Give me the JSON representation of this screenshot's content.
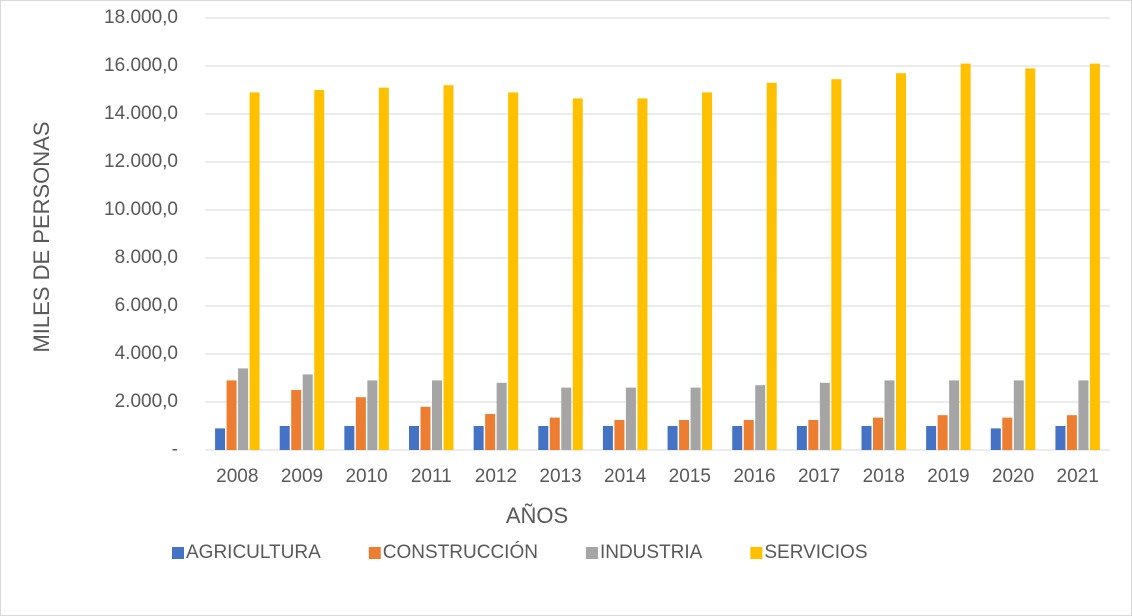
{
  "chart_data": {
    "type": "bar",
    "categories": [
      "2008",
      "2009",
      "2010",
      "2011",
      "2012",
      "2013",
      "2014",
      "2015",
      "2016",
      "2017",
      "2018",
      "2019",
      "2020",
      "2021"
    ],
    "series": [
      {
        "name": "AGRICULTURA",
        "color": "#4472c4",
        "values": [
          900,
          1000,
          1000,
          1000,
          1000,
          1000,
          1000,
          1000,
          1000,
          1000,
          1000,
          1000,
          900,
          1000
        ]
      },
      {
        "name": "CONSTRUCCIÓN",
        "color": "#ed7d31",
        "values": [
          2900,
          2500,
          2200,
          1800,
          1500,
          1350,
          1250,
          1250,
          1250,
          1250,
          1350,
          1450,
          1350,
          1450
        ]
      },
      {
        "name": "INDUSTRIA",
        "color": "#a5a5a5",
        "values": [
          3400,
          3150,
          2900,
          2900,
          2800,
          2600,
          2600,
          2600,
          2700,
          2800,
          2900,
          2900,
          2900,
          2900
        ]
      },
      {
        "name": "SERVICIOS",
        "color": "#ffc000",
        "values": [
          14900,
          15000,
          15100,
          15200,
          14900,
          14650,
          14650,
          14900,
          15300,
          15450,
          15700,
          16100,
          15900,
          16100
        ]
      }
    ],
    "ylim": [
      0,
      18000
    ],
    "yticks": [
      {
        "value": 0,
        "label": "-"
      },
      {
        "value": 2000,
        "label": "2.000,0"
      },
      {
        "value": 4000,
        "label": "4.000,0"
      },
      {
        "value": 6000,
        "label": "6.000,0"
      },
      {
        "value": 8000,
        "label": "8.000,0"
      },
      {
        "value": 10000,
        "label": "10.000,0"
      },
      {
        "value": 12000,
        "label": "12.000,0"
      },
      {
        "value": 14000,
        "label": "14.000,0"
      },
      {
        "value": 16000,
        "label": "16.000,0"
      },
      {
        "value": 18000,
        "label": "18.000,0"
      }
    ],
    "xlabel": "AÑOS",
    "ylabel": "MILES DE PERSONAS",
    "grid": true,
    "legend": "bottom"
  }
}
